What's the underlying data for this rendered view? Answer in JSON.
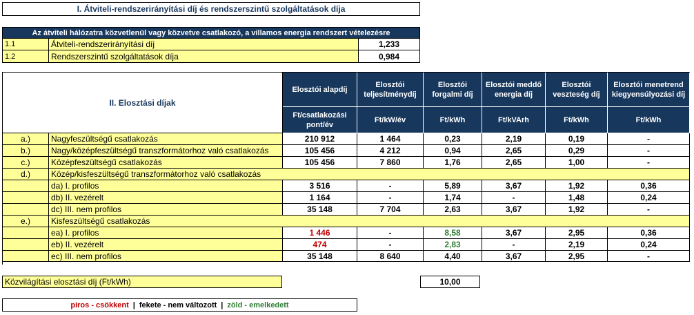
{
  "section1": {
    "title": "I. Átviteli-rendszerirányítási díj és rendszerszintű szolgáltatások díja",
    "header": "Az átviteli hálózatra közvetlenül vagy közvetve csatlakozó, a villamos energia rendszert vételezésre",
    "rows": [
      {
        "num": "1.1",
        "label": "Átviteli-rendszerirányítási díj",
        "value": "1,233"
      },
      {
        "num": "1.2",
        "label": "Rendszerszintű szolgáltatások díja",
        "value": "0,984"
      }
    ]
  },
  "section2": {
    "title": "II. Elosztási díjak",
    "columns": [
      {
        "name": "Elosztói alapdíj",
        "unit": "Ft/csatlakozási pont/év"
      },
      {
        "name": "Elosztói teljesítménydíj",
        "unit": "Ft/kW/év"
      },
      {
        "name": "Elosztói forgalmi díj",
        "unit": "Ft/kWh"
      },
      {
        "name": "Elosztói meddő energia díj",
        "unit": "Ft/kVArh"
      },
      {
        "name": "Elosztói veszteség díj",
        "unit": "Ft/kWh"
      },
      {
        "name": "Elosztói menetrend kiegyensúlyozási díj",
        "unit": "Ft/kWh"
      }
    ],
    "rows": [
      {
        "code": "a.)",
        "label": "Nagyfeszültségű csatlakozás",
        "indent": false,
        "values": [
          "210 912",
          "1 464",
          "0,23",
          "2,19",
          "0,19",
          "-"
        ],
        "colors": [
          "",
          "",
          "",
          "",
          "",
          ""
        ]
      },
      {
        "code": "b.)",
        "label": "Nagy/középfeszültségű transzformátorhoz való csatlakozás",
        "indent": false,
        "values": [
          "105 456",
          "4 212",
          "0,94",
          "2,65",
          "0,29",
          "-"
        ],
        "colors": [
          "",
          "",
          "",
          "",
          "",
          ""
        ]
      },
      {
        "code": "c.)",
        "label": "Középfeszültségű csatlakozás",
        "indent": false,
        "values": [
          "105 456",
          "7 860",
          "1,76",
          "2,65",
          "1,00",
          "-"
        ],
        "colors": [
          "",
          "",
          "",
          "",
          "",
          ""
        ]
      },
      {
        "code": "d.)",
        "label": "Közép/kisfeszültségű transzformátorhoz való csatlakozás",
        "indent": false,
        "group": true
      },
      {
        "code": "",
        "label": "da) I. profilos",
        "indent": true,
        "values": [
          "3 516",
          "-",
          "5,89",
          "3,67",
          "1,92",
          "0,36"
        ],
        "colors": [
          "",
          "",
          "",
          "",
          "",
          ""
        ]
      },
      {
        "code": "",
        "label": "db) II. vezérelt",
        "indent": true,
        "values": [
          "1 164",
          "-",
          "1,74",
          "-",
          "1,48",
          "0,24"
        ],
        "colors": [
          "",
          "",
          "",
          "",
          "",
          ""
        ]
      },
      {
        "code": "",
        "label": "dc) III. nem profilos",
        "indent": true,
        "values": [
          "35 148",
          "7 704",
          "2,63",
          "3,67",
          "1,92",
          "-"
        ],
        "colors": [
          "",
          "",
          "",
          "",
          "",
          ""
        ]
      },
      {
        "code": "e.)",
        "label": "Kisfeszültségű csatlakozás",
        "indent": false,
        "group": true
      },
      {
        "code": "",
        "label": "ea) I. profilos",
        "indent": true,
        "values": [
          "1 446",
          "-",
          "8,58",
          "3,67",
          "2,95",
          "0,36"
        ],
        "colors": [
          "red",
          "",
          "green",
          "",
          "",
          ""
        ]
      },
      {
        "code": "",
        "label": "eb) II. vezérelt",
        "indent": true,
        "values": [
          "474",
          "-",
          "2,83",
          "-",
          "2,19",
          "0,24"
        ],
        "colors": [
          "red",
          "",
          "green",
          "",
          "",
          ""
        ]
      },
      {
        "code": "",
        "label": "ec) III. nem profilos",
        "indent": true,
        "values": [
          "35 148",
          "8 640",
          "4,40",
          "3,67",
          "2,95",
          "-"
        ],
        "colors": [
          "",
          "",
          "",
          "",
          "",
          ""
        ]
      }
    ]
  },
  "street_light": {
    "label": "Közvilágítási elosztási díj (Ft/kWh)",
    "value": "10,00"
  },
  "legend": {
    "red": "piros - csökkent",
    "sep1": "|",
    "black": "fekete - nem változott",
    "sep2": "|",
    "green": "zöld - emelkedett"
  },
  "colors": {
    "navy": "#17375d",
    "yellow": "#ffff99",
    "red": "#c00000",
    "green": "#2e7d32"
  }
}
